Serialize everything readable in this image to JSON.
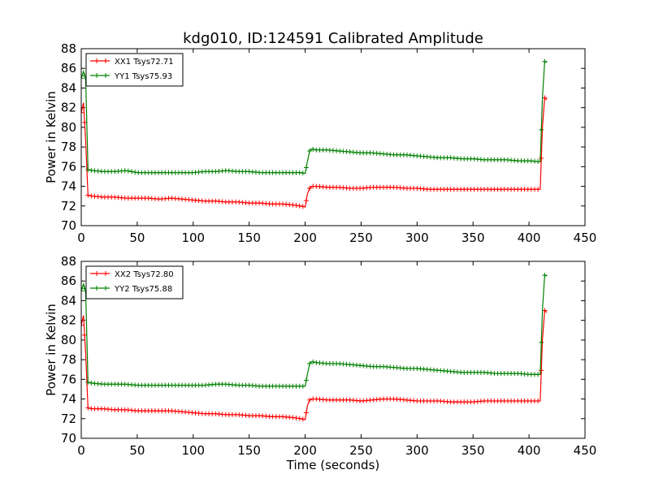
{
  "figure": {
    "title": "kdg010, ID:124591 Calibrated Amplitude"
  },
  "chart_data": [
    {
      "type": "line",
      "title": "kdg010, ID:124591 Calibrated Amplitude",
      "xlabel": "",
      "ylabel": "Power in Kelvin",
      "xlim": [
        0,
        450
      ],
      "ylim": [
        70,
        88
      ],
      "xticks": [
        0,
        50,
        100,
        150,
        200,
        250,
        300,
        350,
        400,
        450
      ],
      "yticks": [
        70,
        72,
        74,
        76,
        78,
        80,
        82,
        84,
        86,
        88
      ],
      "grid": false,
      "legend_position": "top-left",
      "series": [
        {
          "name": "XX1 Tsys72.71",
          "color": "#ff0000",
          "marker": "+",
          "x": [
            0,
            2,
            4,
            6,
            10,
            20,
            30,
            40,
            50,
            60,
            70,
            80,
            90,
            100,
            110,
            120,
            130,
            140,
            150,
            160,
            170,
            180,
            190,
            196,
            200,
            202,
            204,
            206,
            210,
            220,
            230,
            240,
            250,
            260,
            270,
            280,
            290,
            300,
            310,
            320,
            330,
            340,
            350,
            360,
            370,
            380,
            390,
            400,
            410,
            412,
            414,
            416
          ],
          "values": [
            81.5,
            82.5,
            78.5,
            73.1,
            73.0,
            72.9,
            72.9,
            72.8,
            72.8,
            72.8,
            72.7,
            72.8,
            72.7,
            72.6,
            72.5,
            72.5,
            72.4,
            72.4,
            72.3,
            72.3,
            72.2,
            72.2,
            72.1,
            72.0,
            71.9,
            73.2,
            73.8,
            74.0,
            74.0,
            73.9,
            73.9,
            73.8,
            73.8,
            73.9,
            73.9,
            73.9,
            73.8,
            73.8,
            73.7,
            73.7,
            73.7,
            73.7,
            73.7,
            73.7,
            73.7,
            73.7,
            73.7,
            73.7,
            73.7,
            80.0,
            83.0,
            82.8
          ]
        },
        {
          "name": "YY1 Tsys75.93",
          "color": "#008000",
          "marker": "+",
          "x": [
            0,
            2,
            4,
            6,
            10,
            20,
            30,
            40,
            50,
            60,
            70,
            80,
            90,
            100,
            110,
            120,
            130,
            140,
            150,
            160,
            170,
            180,
            190,
            196,
            200,
            202,
            204,
            206,
            210,
            220,
            230,
            240,
            250,
            260,
            270,
            280,
            290,
            300,
            310,
            320,
            330,
            340,
            350,
            360,
            370,
            380,
            390,
            400,
            410,
            412,
            414,
            416
          ],
          "values": [
            85.0,
            85.7,
            84.8,
            75.7,
            75.6,
            75.5,
            75.5,
            75.6,
            75.4,
            75.4,
            75.4,
            75.4,
            75.4,
            75.4,
            75.5,
            75.5,
            75.6,
            75.5,
            75.5,
            75.4,
            75.4,
            75.4,
            75.4,
            75.4,
            75.3,
            76.5,
            77.6,
            77.8,
            77.7,
            77.7,
            77.6,
            77.5,
            77.4,
            77.4,
            77.3,
            77.2,
            77.2,
            77.1,
            77.0,
            76.9,
            76.9,
            76.8,
            76.8,
            76.7,
            76.7,
            76.7,
            76.6,
            76.6,
            76.5,
            83.0,
            86.7,
            86.6
          ]
        }
      ]
    },
    {
      "type": "line",
      "title": "",
      "xlabel": "Time (seconds)",
      "ylabel": "Power in Kelvin",
      "xlim": [
        0,
        450
      ],
      "ylim": [
        70,
        88
      ],
      "xticks": [
        0,
        50,
        100,
        150,
        200,
        250,
        300,
        350,
        400,
        450
      ],
      "yticks": [
        70,
        72,
        74,
        76,
        78,
        80,
        82,
        84,
        86,
        88
      ],
      "grid": false,
      "legend_position": "top-left",
      "series": [
        {
          "name": "XX2 Tsys72.80",
          "color": "#ff0000",
          "marker": "+",
          "x": [
            0,
            2,
            4,
            6,
            10,
            20,
            30,
            40,
            50,
            60,
            70,
            80,
            90,
            100,
            110,
            120,
            130,
            140,
            150,
            160,
            170,
            180,
            190,
            196,
            200,
            202,
            204,
            206,
            210,
            220,
            230,
            240,
            250,
            260,
            270,
            280,
            290,
            300,
            310,
            320,
            330,
            340,
            350,
            360,
            370,
            380,
            390,
            400,
            410,
            412,
            414,
            416
          ],
          "values": [
            81.5,
            82.5,
            78.5,
            73.1,
            73.0,
            73.0,
            72.9,
            72.9,
            72.8,
            72.8,
            72.8,
            72.8,
            72.7,
            72.6,
            72.5,
            72.5,
            72.4,
            72.4,
            72.3,
            72.3,
            72.2,
            72.2,
            72.1,
            72.0,
            71.9,
            73.3,
            73.9,
            74.0,
            74.0,
            73.9,
            73.9,
            73.9,
            73.8,
            73.9,
            74.0,
            74.0,
            73.9,
            73.8,
            73.8,
            73.8,
            73.7,
            73.7,
            73.7,
            73.8,
            73.8,
            73.8,
            73.8,
            73.8,
            73.8,
            80.0,
            83.0,
            82.8
          ]
        },
        {
          "name": "YY2 Tsys75.88",
          "color": "#008000",
          "marker": "+",
          "x": [
            0,
            2,
            4,
            6,
            10,
            20,
            30,
            40,
            50,
            60,
            70,
            80,
            90,
            100,
            110,
            120,
            130,
            140,
            150,
            160,
            170,
            180,
            190,
            196,
            200,
            202,
            204,
            206,
            210,
            220,
            230,
            240,
            250,
            260,
            270,
            280,
            290,
            300,
            310,
            320,
            330,
            340,
            350,
            360,
            370,
            380,
            390,
            400,
            410,
            412,
            414,
            416
          ],
          "values": [
            85.0,
            85.7,
            84.8,
            75.7,
            75.6,
            75.5,
            75.5,
            75.5,
            75.4,
            75.4,
            75.4,
            75.4,
            75.4,
            75.4,
            75.4,
            75.5,
            75.5,
            75.4,
            75.4,
            75.3,
            75.3,
            75.3,
            75.3,
            75.3,
            75.3,
            76.5,
            77.6,
            77.8,
            77.7,
            77.6,
            77.6,
            77.5,
            77.4,
            77.3,
            77.3,
            77.2,
            77.1,
            77.1,
            77.0,
            76.9,
            76.8,
            76.7,
            76.7,
            76.7,
            76.6,
            76.6,
            76.6,
            76.5,
            76.5,
            83.0,
            86.6,
            86.5
          ]
        }
      ]
    }
  ]
}
